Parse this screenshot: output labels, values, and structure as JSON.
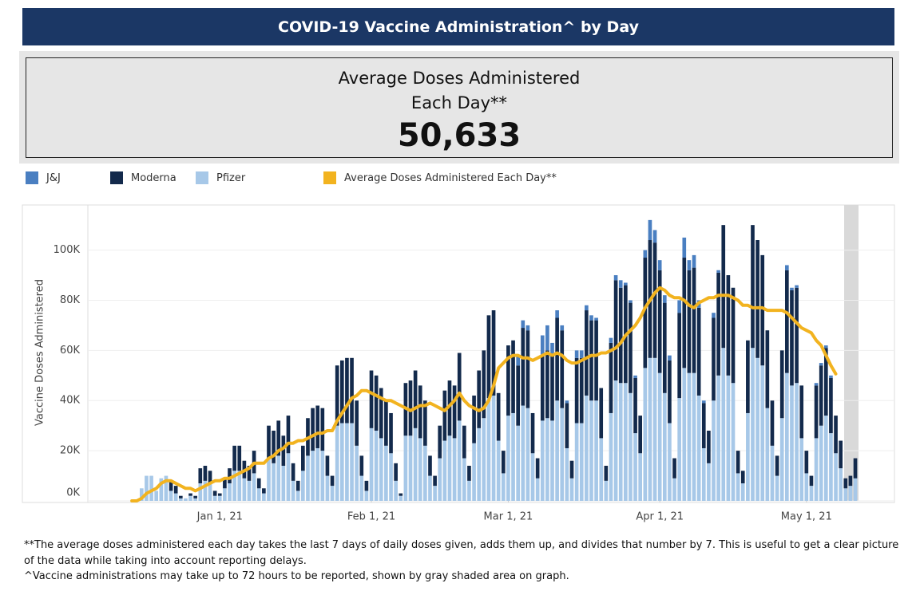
{
  "header": {
    "title": "COVID-19 Vaccine Administration^ by Day"
  },
  "kpi": {
    "label": "Average Doses Administered Each Day**",
    "value": "50,633"
  },
  "footnotes": [
    "**The average doses administered each day takes the last 7 days of daily doses given, adds them up, and divides that number by 7. This is useful to get a clear picture of the data while taking into account reporting delays.",
    "^Vaccine administrations may take up to 72 hours to be reported, shown by gray shaded area on graph."
  ],
  "chart_data": {
    "type": "bar",
    "stacked": true,
    "y_label": "Vaccine Doses Administered",
    "grid": true,
    "xlim": [
      "2020-12-05",
      "2021-05-19"
    ],
    "xticks": [
      {
        "value": "2021-01-01",
        "label": "Jan 1, 21"
      },
      {
        "value": "2021-02-01",
        "label": "Feb 1, 21"
      },
      {
        "value": "2021-03-01",
        "label": "Mar 1, 21"
      },
      {
        "value": "2021-04-01",
        "label": "Apr 1, 21"
      },
      {
        "value": "2021-05-01",
        "label": "May 1, 21"
      }
    ],
    "ylim": [
      0,
      118000
    ],
    "yticks": [
      {
        "value": 0,
        "label": "0K"
      },
      {
        "value": 20000,
        "label": "20K"
      },
      {
        "value": 40000,
        "label": "40K"
      },
      {
        "value": 60000,
        "label": "60K"
      },
      {
        "value": 80000,
        "label": "80K"
      },
      {
        "value": 100000,
        "label": "100K"
      }
    ],
    "x": [
      "2020-12-14",
      "2020-12-15",
      "2020-12-16",
      "2020-12-17",
      "2020-12-18",
      "2020-12-19",
      "2020-12-20",
      "2020-12-21",
      "2020-12-22",
      "2020-12-23",
      "2020-12-24",
      "2020-12-25",
      "2020-12-26",
      "2020-12-27",
      "2020-12-28",
      "2020-12-29",
      "2020-12-30",
      "2020-12-31",
      "2021-01-01",
      "2021-01-02",
      "2021-01-03",
      "2021-01-04",
      "2021-01-05",
      "2021-01-06",
      "2021-01-07",
      "2021-01-08",
      "2021-01-09",
      "2021-01-10",
      "2021-01-11",
      "2021-01-12",
      "2021-01-13",
      "2021-01-14",
      "2021-01-15",
      "2021-01-16",
      "2021-01-17",
      "2021-01-18",
      "2021-01-19",
      "2021-01-20",
      "2021-01-21",
      "2021-01-22",
      "2021-01-23",
      "2021-01-24",
      "2021-01-25",
      "2021-01-26",
      "2021-01-27",
      "2021-01-28",
      "2021-01-29",
      "2021-01-30",
      "2021-01-31",
      "2021-02-01",
      "2021-02-02",
      "2021-02-03",
      "2021-02-04",
      "2021-02-05",
      "2021-02-06",
      "2021-02-07",
      "2021-02-08",
      "2021-02-09",
      "2021-02-10",
      "2021-02-11",
      "2021-02-12",
      "2021-02-13",
      "2021-02-14",
      "2021-02-15",
      "2021-02-16",
      "2021-02-17",
      "2021-02-18",
      "2021-02-19",
      "2021-02-20",
      "2021-02-21",
      "2021-02-22",
      "2021-02-23",
      "2021-02-24",
      "2021-02-25",
      "2021-02-26",
      "2021-02-27",
      "2021-02-28",
      "2021-03-01",
      "2021-03-02",
      "2021-03-03",
      "2021-03-04",
      "2021-03-05",
      "2021-03-06",
      "2021-03-07",
      "2021-03-08",
      "2021-03-09",
      "2021-03-10",
      "2021-03-11",
      "2021-03-12",
      "2021-03-13",
      "2021-03-14",
      "2021-03-15",
      "2021-03-16",
      "2021-03-17",
      "2021-03-18",
      "2021-03-19",
      "2021-03-20",
      "2021-03-21",
      "2021-03-22",
      "2021-03-23",
      "2021-03-24",
      "2021-03-25",
      "2021-03-26",
      "2021-03-27",
      "2021-03-28",
      "2021-03-29",
      "2021-03-30",
      "2021-03-31",
      "2021-04-01",
      "2021-04-02",
      "2021-04-03",
      "2021-04-04",
      "2021-04-05",
      "2021-04-06",
      "2021-04-07",
      "2021-04-08",
      "2021-04-09",
      "2021-04-10",
      "2021-04-11",
      "2021-04-12",
      "2021-04-13",
      "2021-04-14",
      "2021-04-15",
      "2021-04-16",
      "2021-04-17",
      "2021-04-18",
      "2021-04-19",
      "2021-04-20",
      "2021-04-21",
      "2021-04-22",
      "2021-04-23",
      "2021-04-24",
      "2021-04-25",
      "2021-04-26",
      "2021-04-27",
      "2021-04-28",
      "2021-04-29",
      "2021-04-30",
      "2021-05-01",
      "2021-05-02",
      "2021-05-03",
      "2021-05-04",
      "2021-05-05",
      "2021-05-06",
      "2021-05-07",
      "2021-05-08",
      "2021-05-09",
      "2021-05-10",
      "2021-05-11"
    ],
    "series": [
      {
        "name": "J&J",
        "color": "#4a7fc1",
        "values": [
          0,
          0,
          0,
          0,
          0,
          0,
          0,
          0,
          0,
          0,
          0,
          0,
          0,
          0,
          0,
          0,
          0,
          0,
          0,
          0,
          0,
          0,
          0,
          0,
          0,
          0,
          0,
          0,
          0,
          0,
          0,
          0,
          0,
          0,
          0,
          0,
          0,
          0,
          0,
          0,
          0,
          0,
          0,
          0,
          0,
          0,
          0,
          0,
          0,
          0,
          0,
          0,
          0,
          0,
          0,
          0,
          0,
          0,
          0,
          0,
          0,
          0,
          0,
          0,
          0,
          0,
          0,
          0,
          0,
          0,
          0,
          0,
          0,
          0,
          0,
          0,
          0,
          0,
          0,
          4000,
          3000,
          2000,
          0,
          0,
          8000,
          10000,
          5000,
          3000,
          2000,
          1000,
          0,
          3000,
          3000,
          2000,
          2000,
          1000,
          0,
          0,
          2000,
          2000,
          3000,
          1000,
          1000,
          1000,
          0,
          3000,
          8000,
          5000,
          4000,
          3000,
          2000,
          0,
          5000,
          8000,
          4000,
          5000,
          3000,
          1000,
          0,
          2000,
          1000,
          0,
          0,
          0,
          0,
          0,
          0,
          0,
          0,
          0,
          0,
          0,
          0,
          0,
          2000,
          1000,
          1000,
          0,
          0,
          0,
          1000,
          1000,
          1000,
          1000,
          0,
          0,
          0,
          0,
          0
        ]
      },
      {
        "name": "Moderna",
        "color": "#132a4c",
        "values": [
          0,
          0,
          0,
          0,
          0,
          0,
          0,
          0,
          4000,
          3000,
          1000,
          0,
          1000,
          1000,
          6000,
          6000,
          5000,
          2000,
          1000,
          4000,
          6000,
          10000,
          10000,
          7000,
          6000,
          9000,
          4000,
          2000,
          13000,
          13000,
          14000,
          12000,
          15000,
          7000,
          4000,
          10000,
          15000,
          17000,
          17000,
          17000,
          8000,
          4000,
          24000,
          25000,
          26000,
          26000,
          18000,
          8000,
          4000,
          23000,
          22000,
          20000,
          18000,
          16000,
          7000,
          1000,
          21000,
          22000,
          23000,
          21000,
          18000,
          8000,
          4000,
          13000,
          20000,
          22000,
          21000,
          27000,
          13000,
          6000,
          19000,
          23000,
          27000,
          33000,
          34000,
          19000,
          9000,
          28000,
          29000,
          24000,
          31000,
          31000,
          16000,
          8000,
          26000,
          27000,
          26000,
          33000,
          31000,
          18000,
          7000,
          26000,
          26000,
          34000,
          32000,
          32000,
          20000,
          6000,
          28000,
          40000,
          38000,
          39000,
          36000,
          22000,
          15000,
          44000,
          47000,
          46000,
          41000,
          36000,
          25000,
          8000,
          34000,
          44000,
          41000,
          42000,
          35000,
          18000,
          13000,
          33000,
          41000,
          49000,
          40000,
          38000,
          9000,
          5000,
          29000,
          49000,
          47000,
          44000,
          31000,
          18000,
          8000,
          27000,
          41000,
          38000,
          38000,
          21000,
          9000,
          4000,
          21000,
          24000,
          27000,
          22000,
          15000,
          11000,
          4000,
          4000,
          8000
        ]
      },
      {
        "name": "Pfizer",
        "color": "#a7c8e8",
        "values": [
          0,
          0,
          5000,
          10000,
          10000,
          4000,
          9000,
          10000,
          4000,
          3000,
          1000,
          1000,
          2000,
          1000,
          7000,
          8000,
          7000,
          2000,
          2000,
          5000,
          7000,
          12000,
          12000,
          9000,
          8000,
          11000,
          5000,
          3000,
          17000,
          15000,
          18000,
          14000,
          19000,
          8000,
          4000,
          12000,
          18000,
          20000,
          21000,
          20000,
          10000,
          6000,
          30000,
          31000,
          31000,
          31000,
          22000,
          10000,
          4000,
          29000,
          28000,
          25000,
          22000,
          19000,
          8000,
          2000,
          26000,
          26000,
          29000,
          25000,
          22000,
          10000,
          6000,
          17000,
          24000,
          26000,
          25000,
          32000,
          17000,
          8000,
          23000,
          29000,
          33000,
          41000,
          42000,
          24000,
          11000,
          34000,
          35000,
          30000,
          38000,
          37000,
          19000,
          9000,
          32000,
          33000,
          32000,
          40000,
          37000,
          21000,
          9000,
          31000,
          31000,
          42000,
          40000,
          40000,
          25000,
          8000,
          35000,
          48000,
          47000,
          47000,
          43000,
          27000,
          19000,
          53000,
          57000,
          57000,
          51000,
          43000,
          31000,
          9000,
          41000,
          53000,
          51000,
          51000,
          42000,
          21000,
          15000,
          40000,
          50000,
          61000,
          50000,
          47000,
          11000,
          7000,
          35000,
          61000,
          57000,
          54000,
          37000,
          22000,
          10000,
          33000,
          51000,
          46000,
          47000,
          25000,
          11000,
          6000,
          25000,
          30000,
          34000,
          27000,
          19000,
          13000,
          5000,
          6000,
          9000
        ]
      },
      {
        "name": "Average Doses Administered Each Day**",
        "color": "#f2b31f",
        "type": "line",
        "values": [
          0,
          0,
          1000,
          3000,
          4000,
          5000,
          7000,
          8000,
          8000,
          7000,
          6000,
          5000,
          5000,
          4000,
          5000,
          6000,
          7000,
          8000,
          8000,
          9000,
          9000,
          10000,
          11000,
          12000,
          13000,
          15000,
          15000,
          15000,
          17000,
          18000,
          20000,
          21000,
          23000,
          23000,
          24000,
          24000,
          25000,
          26000,
          27000,
          27000,
          28000,
          28000,
          32000,
          35000,
          38000,
          41000,
          42000,
          44000,
          44000,
          43000,
          42000,
          41000,
          40000,
          40000,
          39000,
          38000,
          37000,
          36000,
          37000,
          38000,
          38000,
          39000,
          38000,
          37000,
          36000,
          38000,
          40000,
          43000,
          40000,
          38000,
          37000,
          36000,
          37000,
          40000,
          46000,
          53000,
          55000,
          57000,
          58000,
          58000,
          57000,
          57000,
          56000,
          57000,
          58000,
          59000,
          58000,
          59000,
          58000,
          56000,
          55000,
          55000,
          56000,
          57000,
          58000,
          58000,
          59000,
          59000,
          60000,
          61000,
          63000,
          66000,
          68000,
          70000,
          73000,
          77000,
          80000,
          83000,
          85000,
          84000,
          82000,
          81000,
          81000,
          80000,
          78000,
          77000,
          79000,
          80000,
          81000,
          81000,
          82000,
          82000,
          82000,
          81000,
          80000,
          78000,
          78000,
          77000,
          77000,
          77000,
          76000,
          76000,
          76000,
          76000,
          75000,
          73000,
          71000,
          69000,
          68000,
          67000,
          64000,
          62000,
          58000,
          54000,
          50633,
          null,
          null,
          null,
          null
        ]
      }
    ]
  }
}
